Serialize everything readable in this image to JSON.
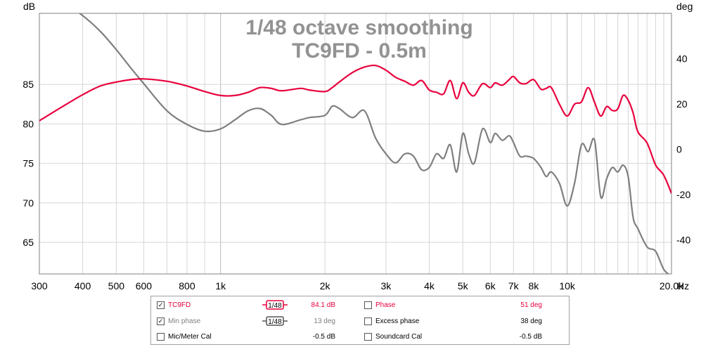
{
  "chart_data": {
    "type": "line",
    "title": "1/48 octave smoothing",
    "subtitle": "TC9FD - 0.5m",
    "xlabel": "Hz",
    "ylabel": "dB",
    "y2label": "deg",
    "xscale": "log",
    "xlim": [
      300,
      20000
    ],
    "ylim": [
      61,
      94
    ],
    "y2lim": [
      -55,
      60
    ],
    "x_ticks": [
      300,
      400,
      500,
      600,
      800,
      1000,
      2000,
      3000,
      4000,
      5000,
      6000,
      7000,
      8000,
      10000,
      20000
    ],
    "x_tick_labels": [
      "300",
      "400",
      "500",
      "600",
      "800",
      "1k",
      "2k",
      "3k",
      "4k",
      "5k",
      "6k",
      "7k",
      "8k",
      "10k",
      "20.0k"
    ],
    "y_ticks": [
      65,
      70,
      75,
      80,
      85
    ],
    "y_tick_labels": [
      "65",
      "70",
      "75",
      "80",
      "85"
    ],
    "y2_ticks": [
      -40,
      -20,
      0,
      20,
      40
    ],
    "y2_tick_labels": [
      "-40",
      "-20",
      "0",
      "20",
      "40"
    ],
    "grid": true,
    "series": [
      {
        "name": "TC9FD",
        "axis": "left",
        "color": "#e8003c",
        "x": [
          300,
          350,
          400,
          450,
          500,
          550,
          600,
          700,
          800,
          900,
          1000,
          1100,
          1200,
          1300,
          1400,
          1500,
          1700,
          1800,
          2000,
          2100,
          2200,
          2400,
          2600,
          2800,
          3000,
          3200,
          3400,
          3600,
          3800,
          4000,
          4200,
          4400,
          4600,
          4800,
          5000,
          5200,
          5400,
          5700,
          6000,
          6200,
          6500,
          6800,
          7000,
          7300,
          7600,
          8000,
          8400,
          8700,
          9000,
          9500,
          10000,
          10500,
          11000,
          11500,
          12000,
          12500,
          13000,
          13500,
          14000,
          14500,
          15000,
          15500,
          16000,
          17000,
          18000,
          19000,
          20000
        ],
        "y": [
          80.4,
          82.2,
          83.7,
          84.8,
          85.3,
          85.6,
          85.7,
          85.4,
          84.8,
          84.1,
          83.6,
          83.6,
          84.0,
          84.6,
          84.5,
          84.2,
          84.5,
          84.3,
          84.1,
          84.6,
          85.3,
          86.5,
          87.2,
          87.4,
          86.8,
          85.9,
          85.4,
          84.9,
          85.5,
          84.3,
          84.0,
          83.8,
          85.5,
          83.2,
          85.2,
          84.0,
          83.6,
          85.1,
          84.6,
          85.2,
          84.9,
          85.6,
          86.0,
          85.2,
          85.1,
          85.6,
          84.4,
          84.5,
          84.6,
          82.5,
          81.0,
          82.5,
          82.8,
          84.6,
          82.7,
          81.0,
          82.2,
          81.7,
          81.9,
          83.6,
          83.0,
          81.4,
          79.0,
          77.6,
          74.8,
          73.5,
          71.2
        ]
      },
      {
        "name": "Min phase",
        "axis": "right",
        "color": "#7f7f7f",
        "x": [
          300,
          350,
          400,
          450,
          500,
          550,
          600,
          700,
          800,
          900,
          1000,
          1100,
          1200,
          1300,
          1400,
          1500,
          1700,
          1800,
          2000,
          2100,
          2200,
          2400,
          2600,
          2800,
          3000,
          3200,
          3400,
          3600,
          3800,
          4000,
          4200,
          4400,
          4600,
          4800,
          5000,
          5200,
          5400,
          5700,
          6000,
          6200,
          6500,
          6800,
          7000,
          7300,
          7600,
          8000,
          8400,
          8700,
          9000,
          9500,
          10000,
          10500,
          11000,
          11500,
          12000,
          12500,
          13000,
          13500,
          14000,
          14500,
          15000,
          15500,
          16000,
          17000,
          18000,
          19000,
          20000
        ],
        "y": [
          70,
          65,
          59,
          52,
          44,
          36,
          29,
          17,
          11,
          8,
          9,
          13,
          17,
          18,
          15,
          11,
          13,
          14,
          15,
          19,
          18,
          14,
          17,
          5,
          -2,
          -6,
          -2,
          -3,
          -9,
          -8,
          -2,
          -4,
          2,
          -10,
          7,
          -2,
          -6,
          9,
          3,
          7,
          4,
          6,
          3,
          -3,
          -3,
          -4,
          -8,
          -12,
          -10,
          -15,
          -25,
          -15,
          2,
          -1,
          4,
          -21,
          -13,
          -8,
          -10,
          -7,
          -12,
          -30,
          -35,
          -43,
          -45,
          -53,
          -56
        ]
      }
    ],
    "legend_placement": "bottom"
  },
  "legend": {
    "rows": [
      {
        "left": {
          "checked": true,
          "label": "TC9FD",
          "smoothing": "1/48",
          "value": "84.1 dB",
          "color": "#e8003c"
        },
        "right": {
          "checked": false,
          "label": "Phase",
          "value": "51 deg",
          "color": "#e8003c"
        }
      },
      {
        "left": {
          "checked": true,
          "label": "Min phase",
          "smoothing": "1/48",
          "value": "13 deg",
          "color": "#7f7f7f"
        },
        "right": {
          "checked": false,
          "label": "Excess phase",
          "value": "38 deg",
          "color": "#000000"
        }
      },
      {
        "left": {
          "checked": false,
          "label": "Mic/Meter Cal",
          "smoothing": "",
          "value": "-0.5 dB",
          "color": "#000000"
        },
        "right": {
          "checked": false,
          "label": "Soundcard Cal",
          "value": "-0.5 dB",
          "color": "#000000"
        }
      }
    ]
  }
}
